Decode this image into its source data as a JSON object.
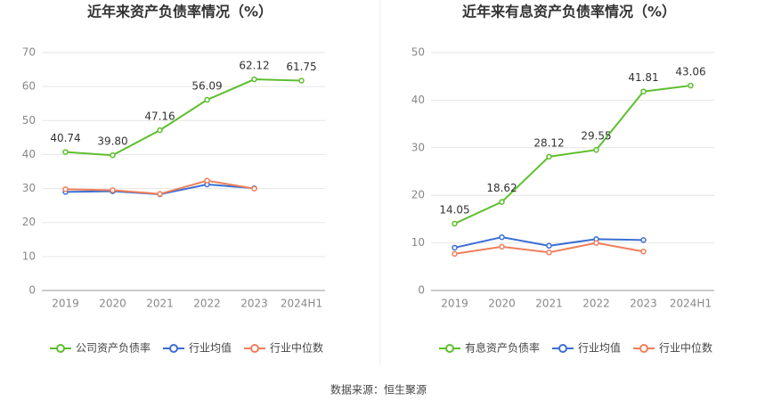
{
  "chart_data": [
    {
      "type": "line",
      "title": "近年来资产负债率情况（%）",
      "categories": [
        "2019",
        "2020",
        "2021",
        "2022",
        "2023",
        "2024H1"
      ],
      "ylim": [
        0,
        70
      ],
      "yticks": [
        0,
        10,
        20,
        30,
        40,
        50,
        60,
        70
      ],
      "grid": true,
      "legend": "bottom",
      "series": [
        {
          "name": "公司资产负债率",
          "color": "#5dbf2e",
          "values": [
            40.74,
            39.8,
            47.16,
            56.09,
            62.12,
            61.75
          ],
          "value_labels": [
            "40.74",
            "39.80",
            "47.16",
            "56.09",
            "62.12",
            "61.75"
          ]
        },
        {
          "name": "行业均值",
          "color": "#3b6fd4",
          "values": [
            29.0,
            29.2,
            28.3,
            31.2,
            30.1,
            null
          ]
        },
        {
          "name": "行业中位数",
          "color": "#ef7e5b",
          "values": [
            29.8,
            29.5,
            28.4,
            32.3,
            30.0,
            null
          ]
        }
      ]
    },
    {
      "type": "line",
      "title": "近年来有息资产负债率情况（%）",
      "categories": [
        "2019",
        "2020",
        "2021",
        "2022",
        "2023",
        "2024H1"
      ],
      "ylim": [
        0,
        50
      ],
      "yticks": [
        0,
        10,
        20,
        30,
        40,
        50
      ],
      "grid": true,
      "legend": "bottom",
      "series": [
        {
          "name": "有息资产负债率",
          "color": "#5dbf2e",
          "values": [
            14.05,
            18.62,
            28.12,
            29.55,
            41.81,
            43.06
          ],
          "value_labels": [
            "14.05",
            "18.62",
            "28.12",
            "29.55",
            "41.81",
            "43.06"
          ]
        },
        {
          "name": "行业均值",
          "color": "#3b6fd4",
          "values": [
            9.0,
            11.2,
            9.4,
            10.8,
            10.6,
            null
          ]
        },
        {
          "name": "行业中位数",
          "color": "#ef7e5b",
          "values": [
            7.7,
            9.2,
            8.0,
            10.0,
            8.2,
            null
          ]
        }
      ]
    }
  ],
  "source": "数据来源：恒生聚源"
}
